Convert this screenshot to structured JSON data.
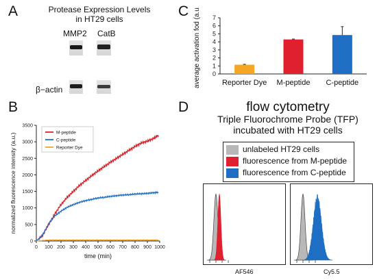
{
  "panels": {
    "a": "A",
    "b": "B",
    "c": "C",
    "d": "D"
  },
  "western_blot": {
    "title_line1": "Protease Expression Levels",
    "title_line2": "in HT29 cells",
    "col_labels": [
      "MMP2",
      "CatB"
    ],
    "row_label": "β−actin"
  },
  "chart_data": [
    {
      "id": "C",
      "type": "bar",
      "categories": [
        "Reporter Dye",
        "M-peptide",
        "C-peptide"
      ],
      "values": [
        1.15,
        4.3,
        4.85
      ],
      "errors": [
        0.05,
        0.05,
        1.05
      ],
      "colors": [
        "#f5a623",
        "#e0202e",
        "#1e6fc4"
      ],
      "ylabel": "average activation fod (a.u.)",
      "ylim": [
        0,
        7
      ],
      "yticks": [
        0,
        1,
        2,
        3,
        4,
        5,
        6,
        7
      ]
    },
    {
      "id": "B",
      "type": "line",
      "xlabel": "time (min)",
      "ylabel": "normalized fluorescence intensity (a.u.)",
      "xlim": [
        0,
        1000
      ],
      "ylim": [
        0,
        3500
      ],
      "xticks": [
        0,
        100,
        200,
        300,
        400,
        500,
        600,
        700,
        800,
        900,
        1000
      ],
      "yticks": [
        0,
        500,
        1000,
        1500,
        2000,
        2500,
        3000,
        3500
      ],
      "legend_position": "top-left",
      "series": [
        {
          "name": "M-peptide",
          "color": "#d62027",
          "x": [
            0,
            50,
            100,
            150,
            200,
            250,
            300,
            350,
            400,
            450,
            500,
            550,
            600,
            650,
            700,
            750,
            800,
            850,
            900,
            950,
            990
          ],
          "y": [
            0,
            160,
            500,
            820,
            1100,
            1320,
            1500,
            1680,
            1830,
            1980,
            2120,
            2250,
            2380,
            2500,
            2620,
            2740,
            2860,
            2960,
            3020,
            3100,
            3200
          ]
        },
        {
          "name": "C-peptide",
          "color": "#1f6fc4",
          "x": [
            0,
            50,
            100,
            150,
            200,
            250,
            300,
            350,
            400,
            450,
            500,
            550,
            600,
            650,
            700,
            750,
            800,
            850,
            900,
            950,
            990
          ],
          "y": [
            0,
            180,
            520,
            760,
            900,
            1020,
            1100,
            1170,
            1220,
            1260,
            1300,
            1320,
            1350,
            1370,
            1390,
            1400,
            1420,
            1430,
            1440,
            1460,
            1470
          ]
        },
        {
          "name": "Reporter Dye",
          "color": "#f5a623",
          "x": [
            0,
            100,
            200,
            300,
            400,
            500,
            600,
            700,
            800,
            900,
            990
          ],
          "y": [
            0,
            30,
            30,
            30,
            30,
            30,
            30,
            30,
            30,
            30,
            30
          ]
        }
      ]
    },
    {
      "id": "D-left",
      "type": "area",
      "xlabel": "AF546",
      "series": [
        {
          "name": "unlabeled HT29 cells",
          "color": "#b8b8b8"
        },
        {
          "name": "fluorescence from M-peptide",
          "color": "#e0202e"
        }
      ]
    },
    {
      "id": "D-right",
      "type": "area",
      "xlabel": "Cy5.5",
      "series": [
        {
          "name": "unlabeled HT29 cells",
          "color": "#b8b8b8"
        },
        {
          "name": "fluorescence from C-peptide",
          "color": "#1e6fc4"
        }
      ]
    }
  ],
  "flow": {
    "title": "flow cytometry",
    "subtitle_line1": "Triple Fluorochrome Probe (TFP)",
    "subtitle_line2": "incubated with HT29 cells",
    "legend": [
      {
        "label": "unlabeled HT29 cells",
        "color": "#b8b8b8"
      },
      {
        "label": "fluorescence from M-peptide",
        "color": "#e0202e"
      },
      {
        "label": "fluorescence from C-peptide",
        "color": "#1e6fc4"
      }
    ]
  }
}
